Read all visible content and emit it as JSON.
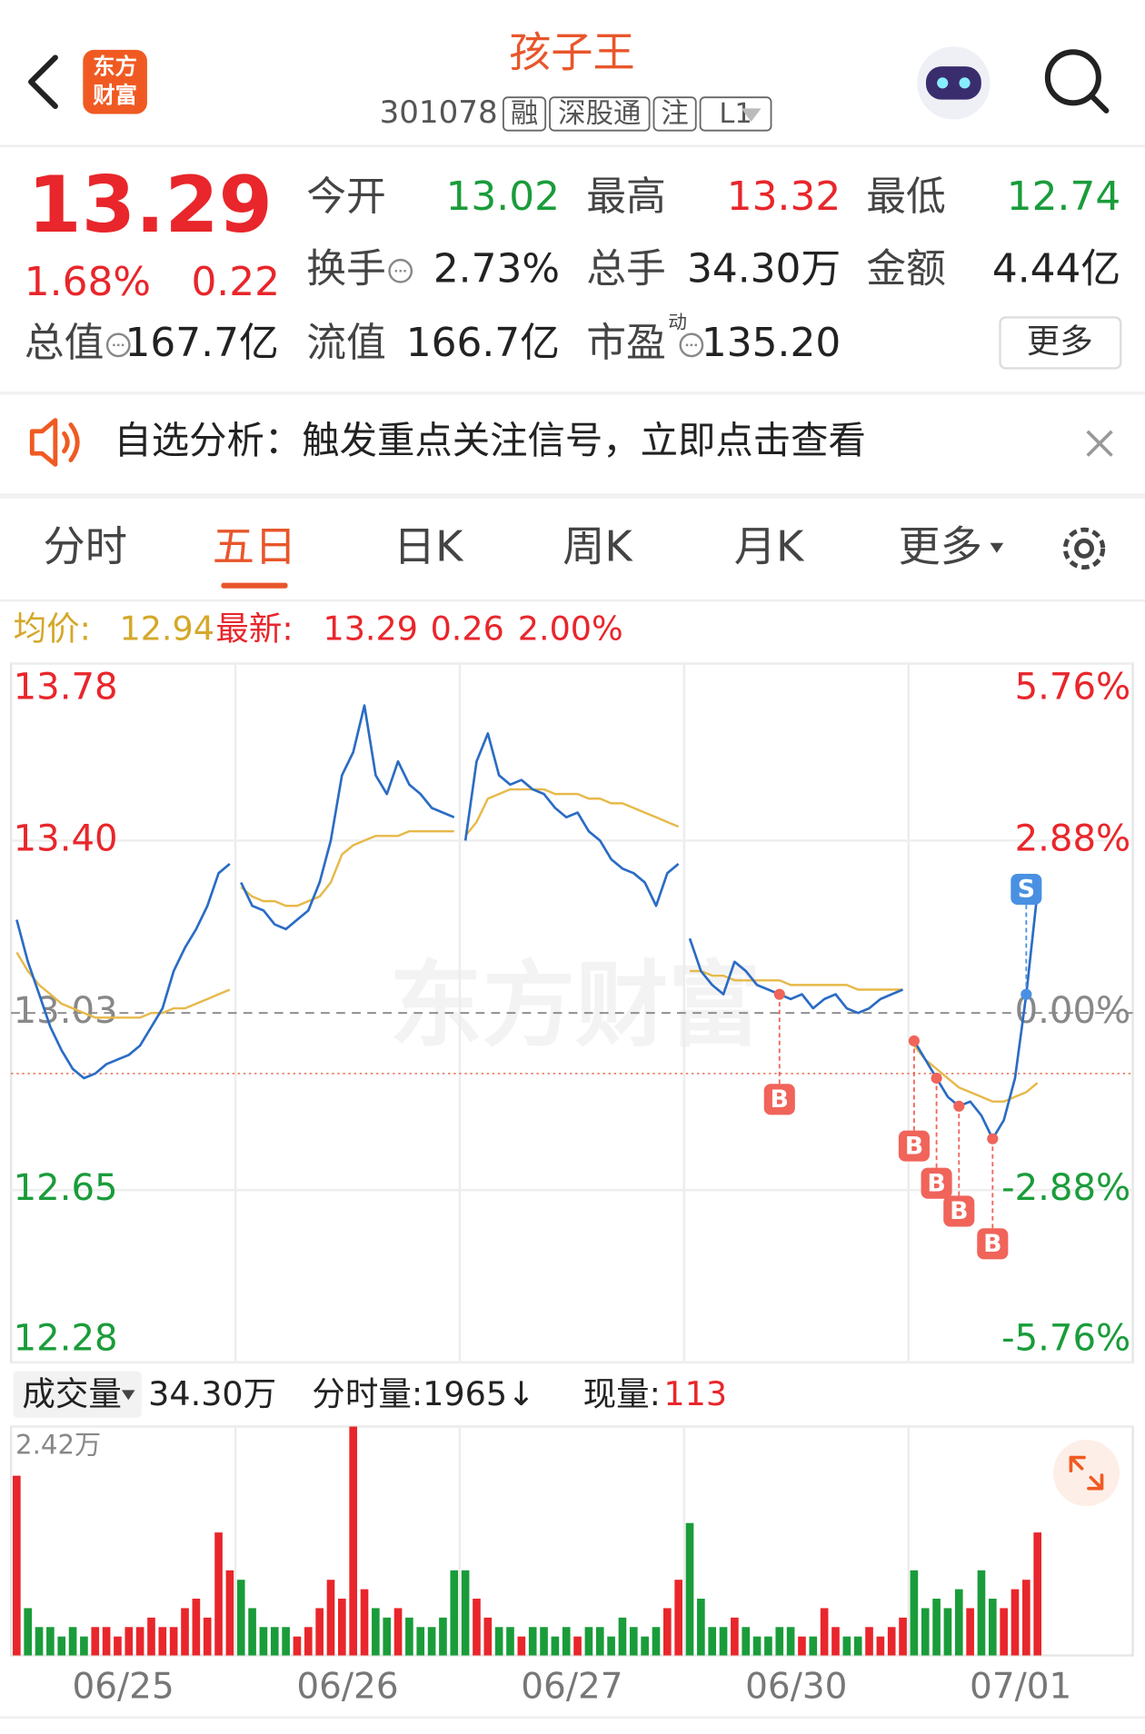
{
  "header": {
    "logo": [
      "东方",
      "财富"
    ],
    "title": "孩子王",
    "code": "301078",
    "badges": [
      "融",
      "深股通",
      "注",
      "L1"
    ]
  },
  "quote": {
    "price": "13.29",
    "change_pct": "1.68%",
    "change": "0.22",
    "stats": [
      [
        {
          "label": "今开",
          "value": "13.02",
          "color": "#1a9c3a"
        },
        {
          "label": "最高",
          "value": "13.32",
          "color": "#e8262b"
        },
        {
          "label": "最低",
          "value": "12.74",
          "color": "#1a9c3a"
        }
      ],
      [
        {
          "label": "换手",
          "value": "2.73%",
          "info": true
        },
        {
          "label": "总手",
          "value": "34.30万"
        },
        {
          "label": "金额",
          "value": "4.44亿"
        }
      ],
      [
        {
          "label": "总值",
          "value": "167.7亿",
          "info": true
        },
        {
          "label": "流值",
          "value": "166.7亿"
        },
        {
          "label": "市盈",
          "sup": "动",
          "value": "135.20",
          "info": true
        }
      ]
    ],
    "more": "更多"
  },
  "banner": {
    "text": "自选分析：触发重点关注信号，立即点击查看"
  },
  "tabs": {
    "items": [
      "分时",
      "五日",
      "日K",
      "周K",
      "月K",
      "更多"
    ],
    "active_tab": 1
  },
  "info": {
    "avg_label": "均价:",
    "avg": "12.94",
    "last_label": "最新:",
    "last": "13.29",
    "change": "0.26",
    "change_pct": "2.00%"
  },
  "chart": {
    "watermark": "东方财富",
    "ylim": [
      12.28,
      13.78
    ],
    "yticks": [
      13.78,
      {
        "value": 13.4,
        "label": "13.40"
      },
      13.03,
      12.65,
      12.28
    ],
    "pct_labels": [
      "5.76%",
      "2.88%",
      "0.00%",
      "-2.88%",
      "-5.76%"
    ],
    "prev_close": 13.03,
    "reference": 12.9,
    "days": [
      {
        "date": "06/25",
        "price": [
          13.23,
          13.14,
          13.07,
          13.0,
          12.95,
          12.91,
          12.89,
          12.9,
          12.92,
          12.93,
          12.94,
          12.96,
          13.0,
          13.04,
          13.12,
          13.17,
          13.21,
          13.26,
          13.33,
          13.35
        ],
        "avg": [
          13.16,
          13.12,
          13.09,
          13.07,
          13.05,
          13.04,
          13.03,
          13.02,
          13.02,
          13.02,
          13.02,
          13.02,
          13.03,
          13.03,
          13.04,
          13.04,
          13.05,
          13.06,
          13.07,
          13.08
        ],
        "volume": [
          1.9,
          0.5,
          0.3,
          0.3,
          0.2,
          0.3,
          0.2,
          0.3,
          0.3,
          0.2,
          0.3,
          0.3,
          0.4,
          0.3,
          0.3,
          0.5,
          0.6,
          0.4,
          1.3,
          0.9
        ],
        "signals": [
          null,
          null,
          null,
          null,
          null,
          null,
          null,
          null,
          null,
          null,
          null,
          null,
          null,
          null,
          null,
          null,
          null,
          null,
          null,
          null
        ]
      },
      {
        "date": "06/26",
        "price": [
          13.31,
          13.26,
          13.25,
          13.22,
          13.21,
          13.23,
          13.25,
          13.31,
          13.4,
          13.54,
          13.59,
          13.69,
          13.54,
          13.5,
          13.57,
          13.52,
          13.5,
          13.47,
          13.46,
          13.45
        ],
        "avg": [
          13.3,
          13.28,
          13.27,
          13.27,
          13.26,
          13.26,
          13.27,
          13.28,
          13.31,
          13.37,
          13.39,
          13.4,
          13.41,
          13.41,
          13.41,
          13.42,
          13.42,
          13.42,
          13.42,
          13.42
        ],
        "volume": [
          0.8,
          0.5,
          0.3,
          0.3,
          0.3,
          0.2,
          0.3,
          0.5,
          0.8,
          0.6,
          2.42,
          0.7,
          0.5,
          0.4,
          0.5,
          0.4,
          0.3,
          0.3,
          0.4,
          0.9
        ],
        "signals": [
          null,
          null,
          null,
          null,
          null,
          null,
          null,
          null,
          null,
          null,
          null,
          null,
          null,
          null,
          null,
          null,
          null,
          null,
          null,
          null
        ]
      },
      {
        "date": "06/27",
        "price": [
          13.4,
          13.57,
          13.63,
          13.54,
          13.52,
          13.53,
          13.51,
          13.5,
          13.47,
          13.45,
          13.46,
          13.42,
          13.4,
          13.36,
          13.34,
          13.33,
          13.31,
          13.26,
          13.33,
          13.35
        ],
        "avg": [
          13.41,
          13.44,
          13.49,
          13.5,
          13.51,
          13.51,
          13.51,
          13.51,
          13.5,
          13.5,
          13.5,
          13.49,
          13.49,
          13.48,
          13.48,
          13.47,
          13.46,
          13.45,
          13.44,
          13.43
        ],
        "volume": [
          0.9,
          0.6,
          0.4,
          0.3,
          0.3,
          0.2,
          0.3,
          0.3,
          0.2,
          0.3,
          0.2,
          0.3,
          0.3,
          0.2,
          0.4,
          0.3,
          0.2,
          0.3,
          0.5,
          0.8
        ],
        "signals": [
          null,
          null,
          null,
          null,
          null,
          null,
          null,
          null,
          null,
          null,
          null,
          null,
          null,
          null,
          null,
          null,
          null,
          null,
          null,
          null
        ]
      },
      {
        "date": "06/30",
        "price": [
          13.19,
          13.12,
          13.09,
          13.07,
          13.14,
          13.12,
          13.09,
          13.08,
          13.07,
          13.06,
          13.07,
          13.04,
          13.06,
          13.07,
          13.04,
          13.03,
          13.04,
          13.06,
          13.07,
          13.08
        ],
        "avg": [
          13.12,
          13.12,
          13.11,
          13.11,
          13.1,
          13.1,
          13.1,
          13.1,
          13.1,
          13.09,
          13.09,
          13.09,
          13.09,
          13.09,
          13.09,
          13.08,
          13.08,
          13.08,
          13.08,
          13.08
        ],
        "volume": [
          1.4,
          0.6,
          0.3,
          0.3,
          0.4,
          0.3,
          0.2,
          0.2,
          0.3,
          0.3,
          0.2,
          0.2,
          0.5,
          0.3,
          0.2,
          0.2,
          0.3,
          0.2,
          0.3,
          0.4
        ],
        "signals": [
          null,
          null,
          null,
          null,
          null,
          null,
          null,
          null,
          "B",
          null,
          null,
          null,
          null,
          null,
          null,
          null,
          null,
          null,
          null,
          null
        ]
      },
      {
        "date": "07/01",
        "price": [
          12.97,
          12.93,
          12.89,
          12.85,
          12.83,
          12.84,
          12.81,
          12.76,
          12.8,
          12.89,
          13.07,
          13.29,
          null,
          null,
          null,
          null,
          null,
          null,
          null,
          null
        ],
        "avg": [
          12.96,
          12.93,
          12.91,
          12.89,
          12.87,
          12.86,
          12.85,
          12.84,
          12.84,
          12.85,
          12.86,
          12.88,
          null,
          null,
          null,
          null,
          null,
          null,
          null,
          null
        ],
        "volume": [
          0.9,
          0.5,
          0.6,
          0.5,
          0.7,
          0.5,
          0.9,
          0.6,
          0.5,
          0.7,
          0.8,
          1.3,
          null,
          null,
          null,
          null,
          null,
          null,
          null,
          null
        ],
        "signals": [
          "B",
          null,
          "B",
          null,
          "B",
          null,
          null,
          "B",
          null,
          null,
          "S",
          null,
          null,
          null,
          null,
          null,
          null,
          null,
          null,
          null
        ]
      }
    ]
  },
  "volume": {
    "selector": "成交量",
    "total": "34.30万",
    "tick_volume": "分时量:1965↓",
    "current_label": "现量:",
    "current": "113",
    "max": {
      "value": 2.42,
      "label": "2.42万"
    }
  }
}
